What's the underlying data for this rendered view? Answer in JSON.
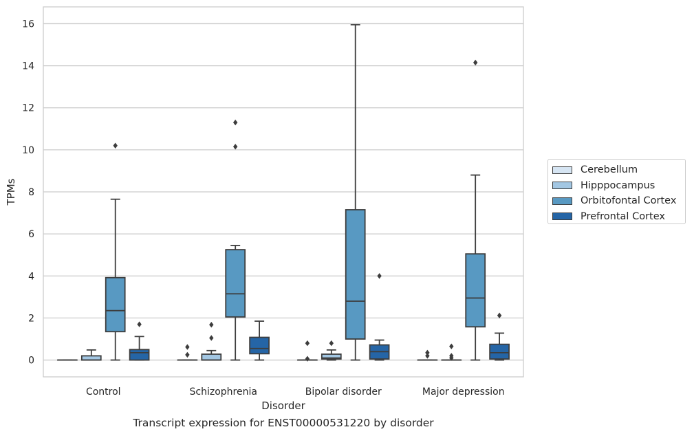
{
  "chart_data": {
    "type": "box",
    "title": "",
    "caption": "Transcript expression for ENST00000531220 by disorder",
    "xlabel": "Disorder",
    "ylabel": "TPMs",
    "categories": [
      "Control",
      "Schizophrenia",
      "Bipolar disorder",
      "Major depression"
    ],
    "ylim": [
      -0.8,
      16.8
    ],
    "yticks": [
      0,
      2,
      4,
      6,
      8,
      10,
      12,
      14,
      16
    ],
    "grid": "horizontal",
    "legend_position": "right",
    "series": [
      {
        "name": "Cerebellum",
        "color": "#d6e5f3",
        "boxes": [
          {
            "min": 0,
            "q1": 0,
            "median": 0,
            "q3": 0,
            "max": 0,
            "outliers": []
          },
          {
            "min": 0,
            "q1": 0,
            "median": 0,
            "q3": 0,
            "max": 0,
            "outliers": [
              0.25,
              0.62
            ]
          },
          {
            "min": 0,
            "q1": 0,
            "median": 0,
            "q3": 0,
            "max": 0,
            "outliers": [
              0.06,
              0.8
            ]
          },
          {
            "min": 0,
            "q1": 0,
            "median": 0,
            "q3": 0,
            "max": 0,
            "outliers": [
              0.2,
              0.35
            ]
          }
        ]
      },
      {
        "name": "Hipppocampus",
        "color": "#a3c7e3",
        "boxes": [
          {
            "min": 0,
            "q1": 0,
            "median": 0,
            "q3": 0.2,
            "max": 0.48,
            "outliers": []
          },
          {
            "min": 0,
            "q1": 0,
            "median": 0,
            "q3": 0.28,
            "max": 0.45,
            "outliers": [
              1.05,
              1.68
            ]
          },
          {
            "min": 0,
            "q1": 0.05,
            "median": 0.1,
            "q3": 0.28,
            "max": 0.48,
            "outliers": [
              0.8
            ]
          },
          {
            "min": 0,
            "q1": 0,
            "median": 0,
            "q3": 0,
            "max": 0,
            "outliers": [
              0.1,
              0.2,
              0.65
            ]
          }
        ]
      },
      {
        "name": "Orbitofontal Cortex",
        "color": "#5899c2",
        "boxes": [
          {
            "min": 0,
            "q1": 1.35,
            "median": 2.35,
            "q3": 3.92,
            "max": 7.65,
            "outliers": [
              10.2
            ]
          },
          {
            "min": 0,
            "q1": 2.05,
            "median": 3.15,
            "q3": 5.25,
            "max": 5.45,
            "outliers": [
              10.15,
              11.3
            ]
          },
          {
            "min": 0,
            "q1": 1.0,
            "median": 2.8,
            "q3": 7.15,
            "max": 15.95,
            "outliers": []
          },
          {
            "min": 0,
            "q1": 1.58,
            "median": 2.95,
            "q3": 5.05,
            "max": 8.8,
            "outliers": [
              14.15
            ]
          }
        ]
      },
      {
        "name": "Prefrontal Cortex",
        "color": "#2565a6",
        "boxes": [
          {
            "min": 0,
            "q1": 0,
            "median": 0.35,
            "q3": 0.5,
            "max": 1.12,
            "outliers": [
              1.7
            ]
          },
          {
            "min": 0,
            "q1": 0.3,
            "median": 0.55,
            "q3": 1.08,
            "max": 1.85,
            "outliers": []
          },
          {
            "min": 0,
            "q1": 0.05,
            "median": 0.4,
            "q3": 0.72,
            "max": 0.95,
            "outliers": [
              4.0
            ]
          },
          {
            "min": 0,
            "q1": 0.05,
            "median": 0.35,
            "q3": 0.75,
            "max": 1.28,
            "outliers": [
              2.12
            ]
          }
        ]
      }
    ]
  }
}
